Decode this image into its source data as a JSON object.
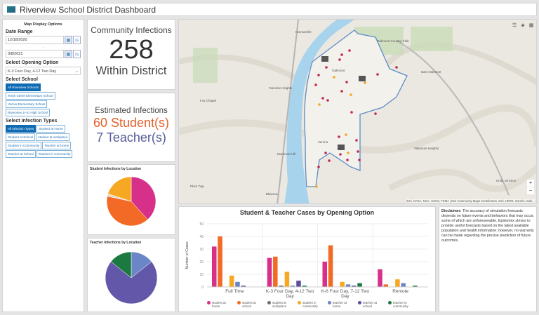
{
  "header": {
    "title": "Riverview School District Dashboard"
  },
  "left": {
    "panel_title": "Map Display Options",
    "date_range_label": "Date Range",
    "start_date": "12/18/2020",
    "end_date": "3/8/2021",
    "opening_label": "Select Opening Option",
    "opening_value": "K-3 Four Day, 4-12 Two Day",
    "school_label": "Select School",
    "schools": [
      {
        "label": "All Riverview Schools",
        "selected": true
      },
      {
        "label": "Tenth Street Elementary School",
        "selected": false
      },
      {
        "label": "Verner Elementary School",
        "selected": false
      },
      {
        "label": "Riverview Jr-Sr High School",
        "selected": false
      }
    ],
    "infection_label": "Select Infection Types",
    "infection_types": [
      {
        "label": "All Infection Types",
        "selected": true
      },
      {
        "label": "Student at Home",
        "selected": false
      },
      {
        "label": "Student at School",
        "selected": false
      },
      {
        "label": "student at workplace",
        "selected": false
      },
      {
        "label": "Student in Community",
        "selected": false
      },
      {
        "label": "Teacher at Home",
        "selected": false
      },
      {
        "label": "Teacher at School",
        "selected": false
      },
      {
        "label": "Teacher in Community",
        "selected": false
      }
    ]
  },
  "community": {
    "title": "Community Infections",
    "value": "258",
    "subtitle": "Within District"
  },
  "estimated": {
    "title": "Estimated Infections",
    "students": "60 Student(s)",
    "teachers": "7 Teacher(s)",
    "student_color": "#e4612a",
    "teacher_color": "#565b99"
  },
  "map": {
    "labels": [
      "Oakmont",
      "East Oakmont",
      "Fairview Heights",
      "Fox Chapel",
      "Montrose Hill",
      "Verona",
      "Valemont Heights",
      "Unity Junction",
      "Plum Twp",
      "Blawnox",
      "Harmarville",
      "Oakmont Country Club"
    ],
    "attribution": "Esri, NASA, NGA, USGS, FEMA | Esri Community Maps Contributors, Esri, HERE, Garmin, Safe..."
  },
  "pies": [
    {
      "title": "Student Infections by Location",
      "slices": [
        {
          "label": "student at home",
          "value": 23,
          "color": "#d6308a"
        },
        {
          "label": "student at school",
          "value": 24,
          "color": "#f26a25"
        },
        {
          "label": "student at workplace",
          "value": 1,
          "color": "#e8d9c4"
        },
        {
          "label": "student in community",
          "value": 12,
          "color": "#f7a823"
        }
      ]
    },
    {
      "title": "Teacher Infections by Location",
      "slices": [
        {
          "label": "teacher at home",
          "value": 1,
          "color": "#6a86c6"
        },
        {
          "label": "teacher at school",
          "value": 5,
          "color": "#6257a8"
        },
        {
          "label": "teacher in community",
          "value": 1,
          "color": "#1c7a40"
        }
      ]
    }
  ],
  "chart_data": {
    "type": "bar",
    "title": "Student & Teacher Cases by Opening Option",
    "ylabel": "Number of Cases",
    "ylim": [
      0,
      50
    ],
    "yticks": [
      0,
      10,
      20,
      30,
      40,
      50
    ],
    "categories": [
      "Full Time",
      "K-3 Four Day, 4-12 Two Day",
      "K-6 Four Day, 7-12 Two Day",
      "Remote"
    ],
    "series": [
      {
        "name": "student at home",
        "color": "#d6308a",
        "values": [
          32,
          23,
          20,
          14
        ]
      },
      {
        "name": "student at school",
        "color": "#f26a25",
        "values": [
          40,
          24,
          33,
          2
        ]
      },
      {
        "name": "student at workplace",
        "color": "#6d6d6d",
        "values": [
          0,
          1,
          0,
          0
        ]
      },
      {
        "name": "student in community",
        "color": "#f7a823",
        "values": [
          9,
          12,
          4,
          6
        ]
      },
      {
        "name": "teacher at home",
        "color": "#6a86c6",
        "values": [
          4,
          1,
          2,
          3
        ]
      },
      {
        "name": "teacher at school",
        "color": "#5a4fa0",
        "values": [
          1,
          5,
          1,
          0
        ]
      },
      {
        "name": "teacher in community",
        "color": "#1c7a40",
        "values": [
          0,
          1,
          3,
          1
        ]
      }
    ],
    "grid": true,
    "legend": "bottom"
  },
  "disclaimer": {
    "bold": "Disclaimer:",
    "text": " The accuracy of simulation forecasts depends on future events and behaviors that may occur, some of which are unforeseeable. Epistemix strives to provide useful forecasts based on the latest available population and health information; however, no warranty can be made regarding the precise prediction of future outcomes."
  }
}
